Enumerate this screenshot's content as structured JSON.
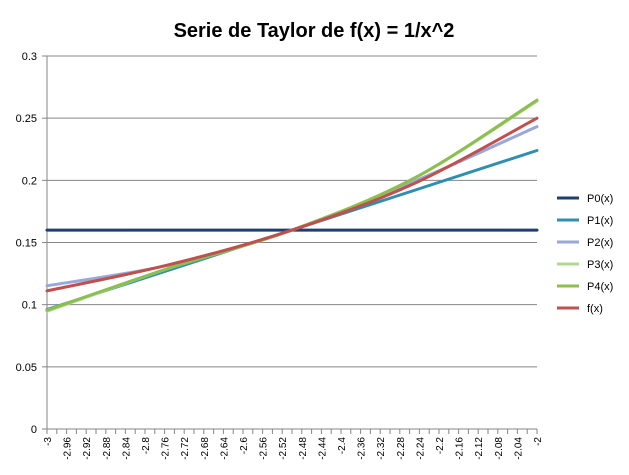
{
  "chart_data": {
    "type": "line",
    "title": "Serie de Taylor de f(x) = 1/x^2",
    "xlabel": "",
    "ylabel": "",
    "ylim": [
      0,
      0.3
    ],
    "yticks": [
      "0",
      "0.05",
      "0.1",
      "0.15",
      "0.2",
      "0.25",
      "0.3"
    ],
    "x_start": -3,
    "x_end": -2,
    "x_step": 0.02,
    "x_tick_labels": [
      "-3",
      "-2.96",
      "-2.92",
      "-2.88",
      "-2.84",
      "-2.8",
      "-2.76",
      "-2.72",
      "-2.68",
      "-2.64",
      "-2.6",
      "-2.56",
      "-2.52",
      "-2.48",
      "-2.44",
      "-2.4",
      "-2.36",
      "-2.32",
      "-2.28",
      "-2.24",
      "-2.2",
      "-2.16",
      "-2.12",
      "-2.08",
      "-2.04",
      "-2"
    ],
    "grid": "horizontal",
    "legend_position": "right",
    "series": [
      {
        "name": "P0(x)",
        "color": "#1F3F6E",
        "points": [
          [
            -3,
            0.16
          ],
          [
            -2,
            0.16
          ]
        ]
      },
      {
        "name": "P1(x)",
        "color": "#2F8FAF",
        "points": [
          [
            -3,
            0.096
          ],
          [
            -2.5,
            0.16
          ],
          [
            -2,
            0.224
          ]
        ]
      },
      {
        "name": "P2(x)",
        "color": "#98A8D8",
        "points": [
          [
            -3,
            0.1152
          ],
          [
            -2.75,
            0.132
          ],
          [
            -2.5,
            0.16
          ],
          [
            -2.25,
            0.1992
          ],
          [
            -2,
            0.2432
          ]
        ]
      },
      {
        "name": "P3(x)",
        "color": "#B0D890",
        "points": [
          [
            -3,
            0.0947
          ],
          [
            -2.75,
            0.1294
          ],
          [
            -2.5,
            0.16
          ],
          [
            -2.25,
            0.2018
          ],
          [
            -2,
            0.2637
          ]
        ]
      },
      {
        "name": "P4(x)",
        "color": "#8CBF4F",
        "points": [
          [
            -3,
            0.0955
          ],
          [
            -2.75,
            0.1295
          ],
          [
            -2.5,
            0.16
          ],
          [
            -2.25,
            0.2019
          ],
          [
            -2,
            0.2645
          ]
        ]
      },
      {
        "name": "f(x)",
        "color": "#C0504D",
        "points": [
          [
            -3,
            0.1111
          ],
          [
            -2.75,
            0.1322
          ],
          [
            -2.5,
            0.16
          ],
          [
            -2.25,
            0.1975
          ],
          [
            -2,
            0.25
          ]
        ]
      }
    ]
  }
}
